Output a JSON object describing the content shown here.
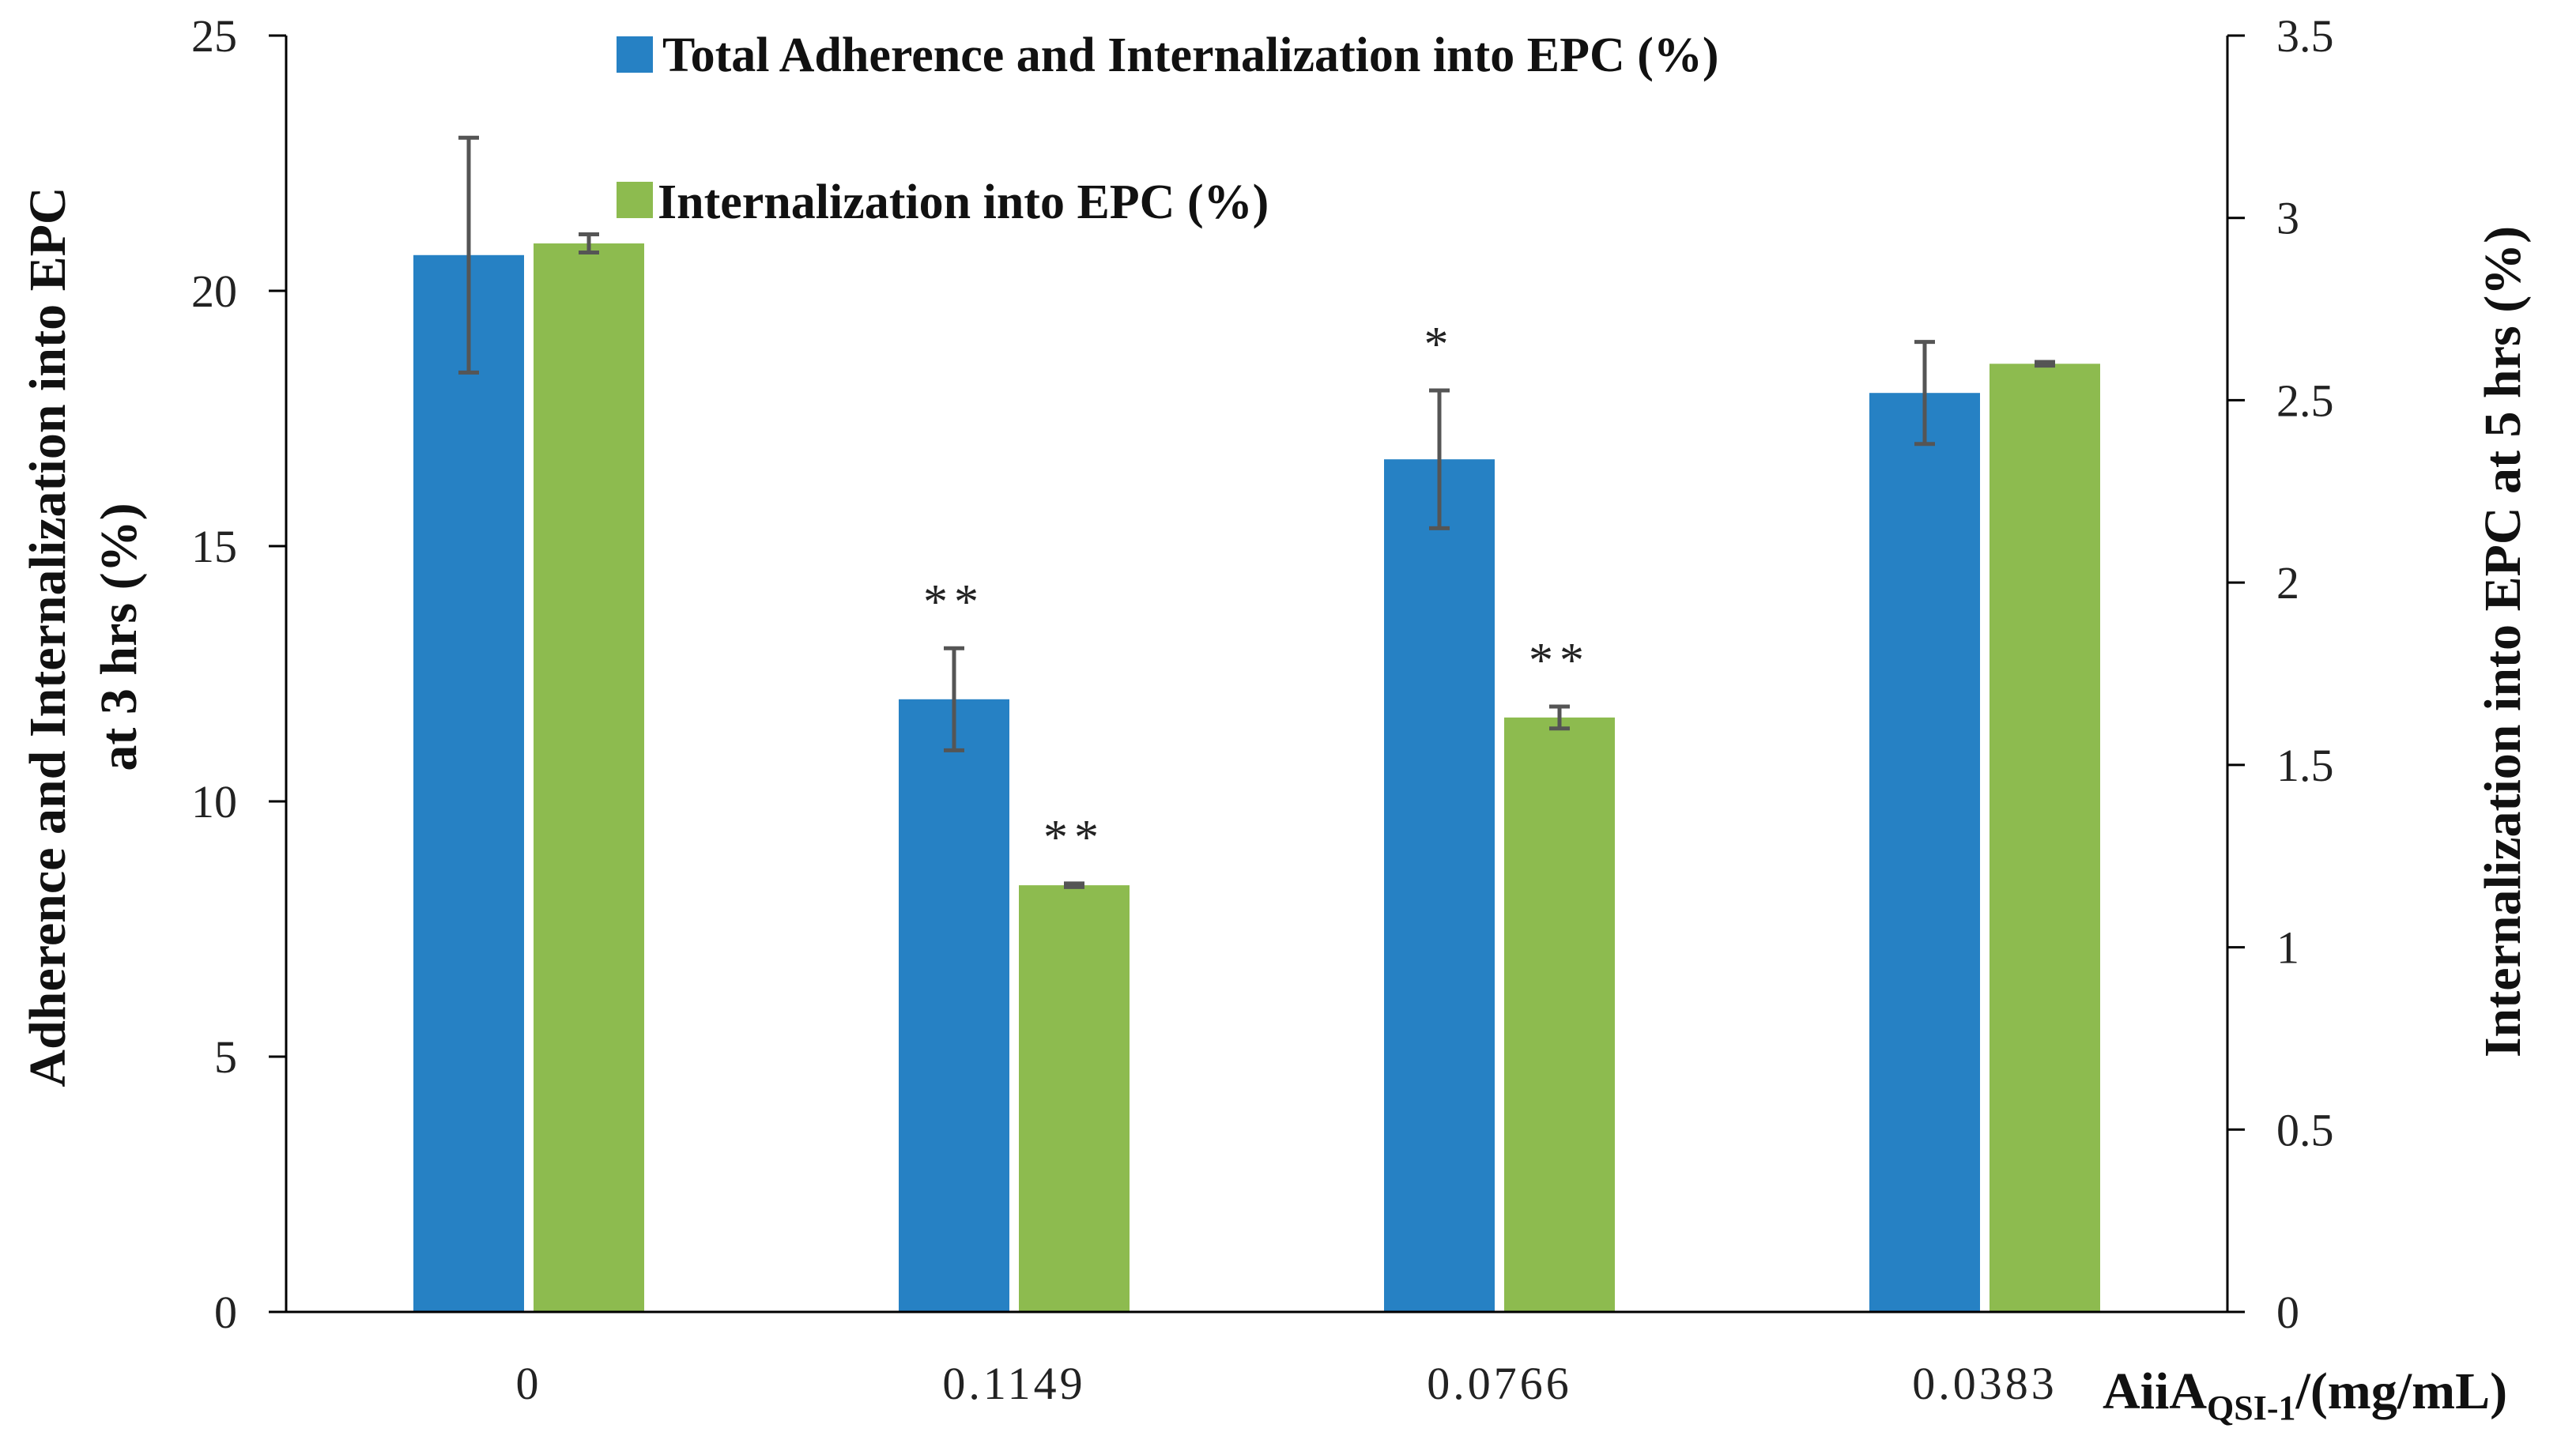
{
  "chart_data": {
    "type": "bar",
    "categories": [
      "0",
      "0.1149",
      "0.0766",
      "0.0383"
    ],
    "xlabel": {
      "main": "AiiA",
      "sub": "QSI-1",
      "rest": "/(mg/mL)"
    },
    "ylabel_left": [
      "Adherence and Internalization into EPC",
      "at 3 hrs (%)"
    ],
    "ylabel_right": "Internalization into EPC at 5 hrs (%)",
    "y_left": {
      "min": 0,
      "max": 25,
      "ticks": [
        "0",
        "5",
        "10",
        "15",
        "20",
        "25"
      ]
    },
    "y_right": {
      "min": 0,
      "max": 3.5,
      "ticks": [
        "0",
        "0.5",
        "1",
        "1.5",
        "2",
        "2.5",
        "3",
        "3.5"
      ]
    },
    "series": [
      {
        "name": "Total Adherence and Internalization into EPC (%)",
        "axis": "left",
        "color": "#2681C4",
        "values": [
          20.7,
          12.0,
          16.7,
          18.0
        ],
        "errors": [
          2.3,
          1.0,
          1.35,
          1.0
        ],
        "annotations": [
          "",
          "**",
          "*",
          ""
        ]
      },
      {
        "name": "Internalization into EPC (%)",
        "axis": "right",
        "color": "#8DBB4F",
        "values": [
          2.93,
          1.17,
          1.63,
          2.6
        ],
        "errors": [
          0.025,
          0.005,
          0.03,
          0.005
        ],
        "annotations": [
          "",
          "**",
          "**",
          ""
        ]
      }
    ],
    "legend": "top-center",
    "grid": false
  }
}
